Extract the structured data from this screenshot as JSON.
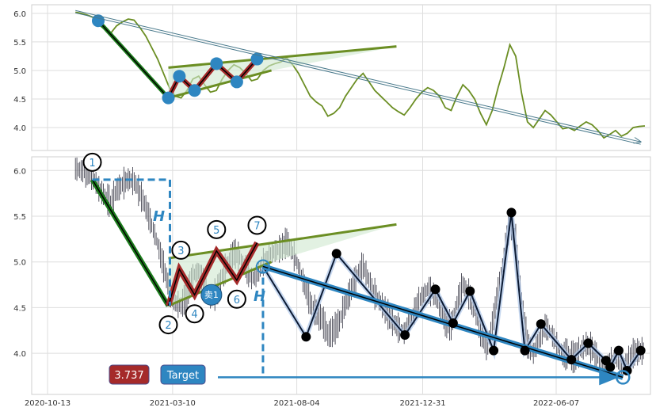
{
  "chart_data": [
    {
      "type": "line",
      "panel": "top",
      "ylim": [
        3.6,
        6.15
      ],
      "yticks": [
        4.0,
        4.5,
        5.0,
        5.5,
        6.0
      ],
      "ytick_labels": [
        "4.0",
        "4.5",
        "5.0",
        "5.5",
        "6.0"
      ],
      "grid": true,
      "series": [
        {
          "color": "#6b8e23",
          "values": [
            6.02,
            6.0,
            5.97,
            5.93,
            5.8,
            5.72,
            5.65,
            5.78,
            5.85,
            5.9,
            5.88,
            5.75,
            5.6,
            5.4,
            5.2,
            4.95,
            4.7,
            4.55,
            4.52,
            4.65,
            4.85,
            4.9,
            4.75,
            4.62,
            4.65,
            4.85,
            5.0,
            5.1,
            5.05,
            4.95,
            4.82,
            4.85,
            5.0,
            5.08,
            5.12,
            5.15,
            5.22,
            5.1,
            4.95,
            4.75,
            4.55,
            4.45,
            4.38,
            4.2,
            4.25,
            4.35,
            4.55,
            4.7,
            4.85,
            4.95,
            4.8,
            4.65,
            4.55,
            4.45,
            4.35,
            4.28,
            4.22,
            4.35,
            4.5,
            4.62,
            4.7,
            4.65,
            4.55,
            4.35,
            4.3,
            4.55,
            4.75,
            4.65,
            4.5,
            4.25,
            4.05,
            4.3,
            4.7,
            5.05,
            5.45,
            5.25,
            4.6,
            4.1,
            4.0,
            4.15,
            4.3,
            4.22,
            4.1,
            3.98,
            4.0,
            3.95,
            4.03,
            4.1,
            4.05,
            3.95,
            3.82,
            3.88,
            3.95,
            3.85,
            3.9,
            4.0,
            4.02,
            4.03
          ]
        }
      ],
      "trend_arrow": {
        "from": [
          "2020-11-15",
          6.05
        ],
        "to": [
          "2022-09-15",
          3.75
        ]
      },
      "pattern_markers": [
        {
          "x": "2020-12-12",
          "y": 5.87
        },
        {
          "x": "2021-03-05",
          "y": 4.52
        },
        {
          "x": "2021-03-18",
          "y": 4.9
        },
        {
          "x": "2021-04-05",
          "y": 4.65
        },
        {
          "x": "2021-05-01",
          "y": 5.12
        },
        {
          "x": "2021-05-25",
          "y": 4.8
        },
        {
          "x": "2021-06-18",
          "y": 5.2
        }
      ]
    },
    {
      "type": "line",
      "panel": "bottom",
      "ylim": [
        3.55,
        6.15
      ],
      "yticks": [
        4.0,
        4.5,
        5.0,
        5.5,
        6.0
      ],
      "ytick_labels": [
        "4.0",
        "4.5",
        "5.0",
        "5.5",
        "6.0"
      ],
      "x_tick_labels": [
        "2020-10-13",
        "2021-03-10",
        "2021-08-04",
        "2021-12-31",
        "2022-06-07"
      ],
      "grid": true,
      "swing_points": [
        {
          "x": "2021-06-25",
          "y": 4.95
        },
        {
          "x": "2021-08-15",
          "y": 4.18
        },
        {
          "x": "2021-09-20",
          "y": 5.09
        },
        {
          "x": "2021-12-10",
          "y": 4.2
        },
        {
          "x": "2022-01-15",
          "y": 4.7
        },
        {
          "x": "2022-02-05",
          "y": 4.33
        },
        {
          "x": "2022-02-25",
          "y": 4.68
        },
        {
          "x": "2022-03-25",
          "y": 4.03
        },
        {
          "x": "2022-04-15",
          "y": 5.54
        },
        {
          "x": "2022-05-01",
          "y": 4.03
        },
        {
          "x": "2022-05-20",
          "y": 4.32
        },
        {
          "x": "2022-06-25",
          "y": 3.93
        },
        {
          "x": "2022-07-15",
          "y": 4.11
        },
        {
          "x": "2022-08-05",
          "y": 3.92
        },
        {
          "x": "2022-08-10",
          "y": 3.85
        },
        {
          "x": "2022-08-20",
          "y": 4.03
        },
        {
          "x": "2022-08-30",
          "y": 3.81
        },
        {
          "x": "2022-09-15",
          "y": 4.03
        }
      ],
      "wedge_pattern": {
        "points": [
          {
            "label": "1",
            "x": "2020-12-05",
            "y": 5.9
          },
          {
            "label": "2",
            "x": "2021-03-05",
            "y": 4.52
          },
          {
            "label": "3",
            "x": "2021-03-18",
            "y": 4.92
          },
          {
            "label": "4",
            "x": "2021-04-05",
            "y": 4.64
          },
          {
            "label": "5",
            "x": "2021-05-01",
            "y": 5.12
          },
          {
            "label": "6",
            "x": "2021-05-25",
            "y": 4.8
          },
          {
            "label": "7",
            "x": "2021-06-18",
            "y": 5.21
          }
        ],
        "upper_line": [
          [
            "2021-03-05",
            5.04
          ],
          [
            "2021-11-30",
            5.41
          ]
        ],
        "lower_line": [
          [
            "2021-03-05",
            4.52
          ],
          [
            "2021-07-05",
            5.0
          ]
        ],
        "sell_signal": {
          "label": "卖1",
          "x": "2021-04-25",
          "y": 4.64
        },
        "height_label": "H",
        "target_value": "3.737",
        "target_label": "Target",
        "breakout": {
          "x": "2021-06-25",
          "y": 4.95
        },
        "target_point": {
          "x": "2022-08-25",
          "y": 3.737
        }
      }
    }
  ]
}
